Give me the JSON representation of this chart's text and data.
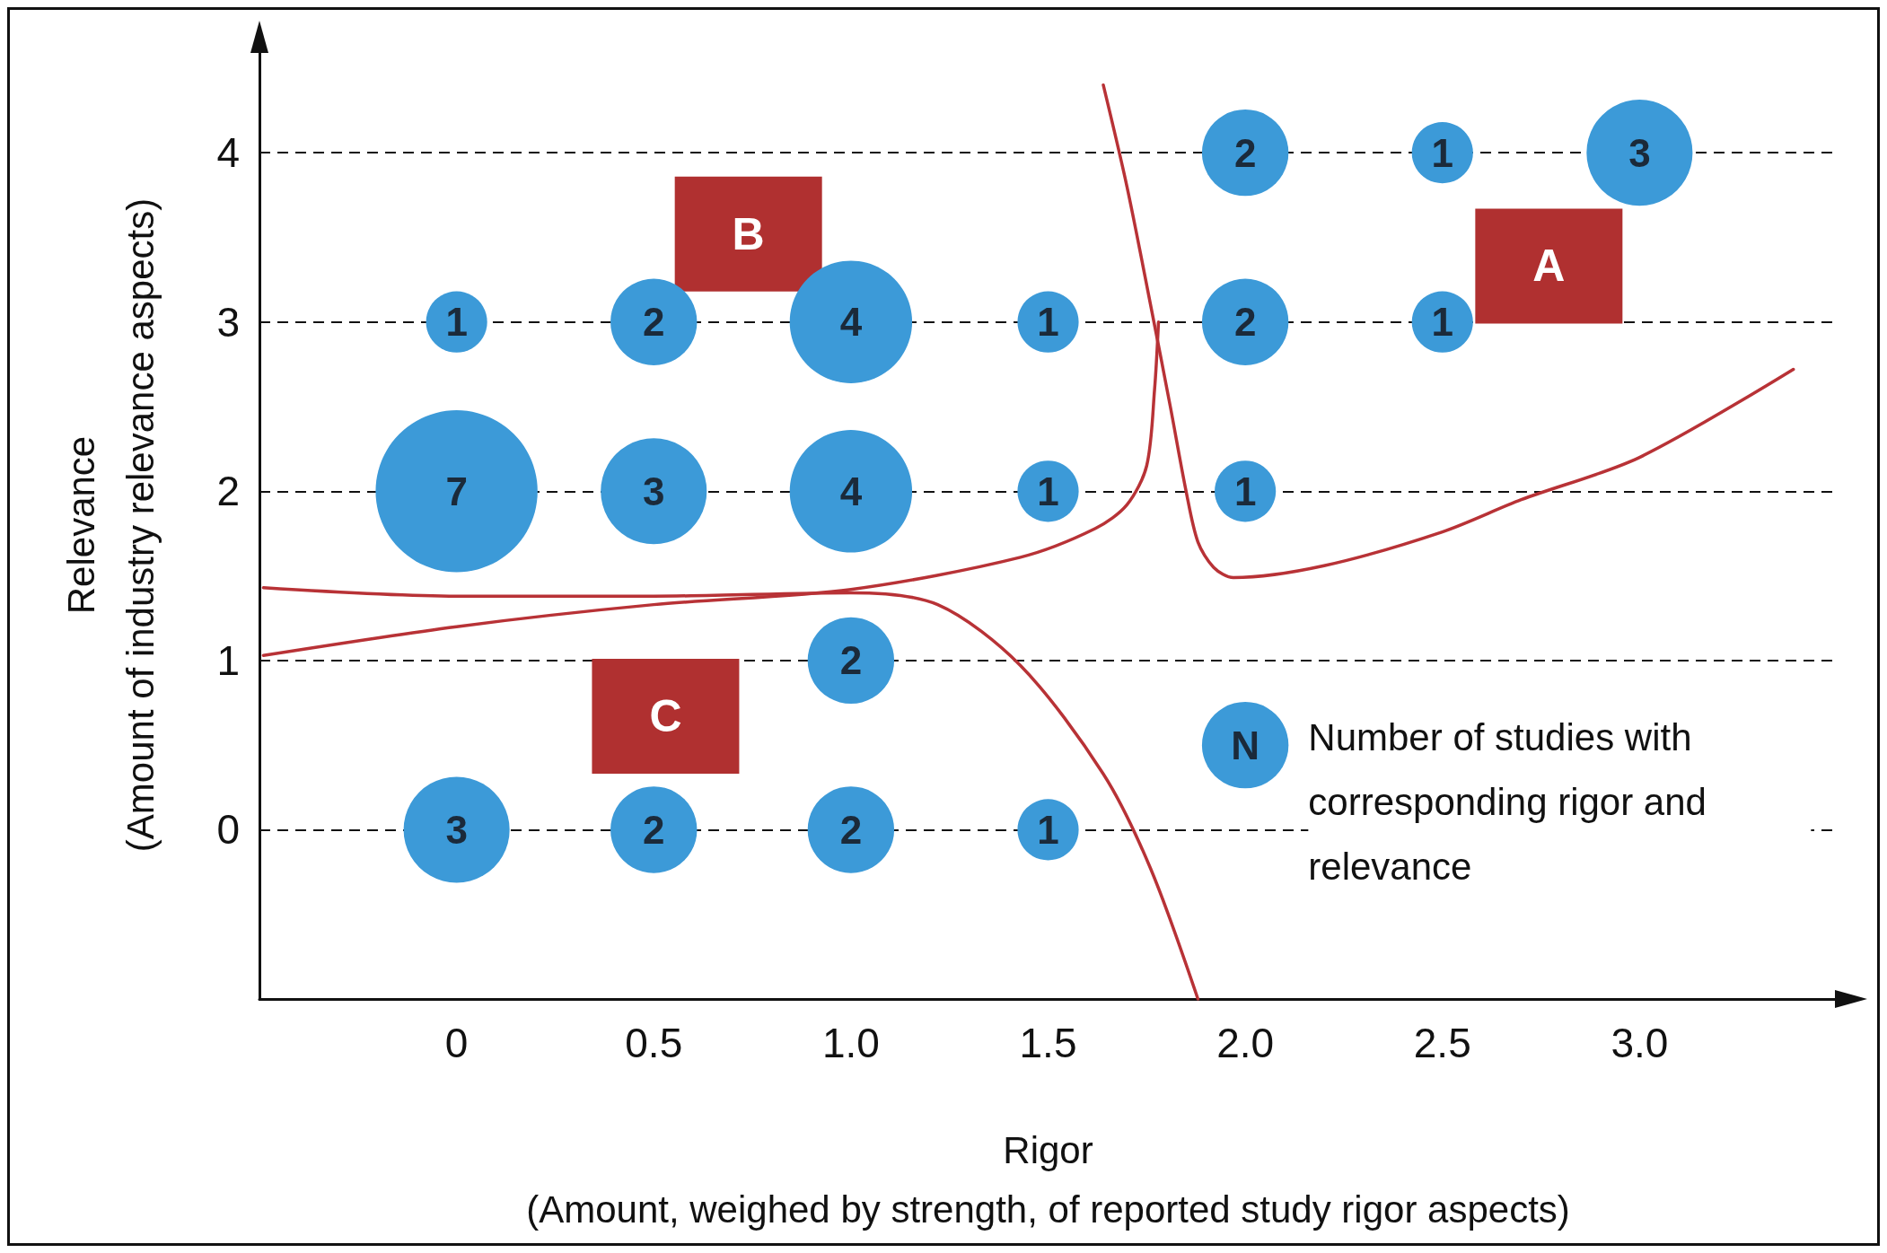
{
  "chart_data": {
    "type": "bubble",
    "xlabel": "Rigor\n(Amount, weighed by strength, of reported study rigor aspects)",
    "ylabel": "Relevance\n(Amount of industry relevance aspects)",
    "xlim": [
      -0.5,
      3.5
    ],
    "ylim": [
      -1,
      4.6
    ],
    "xticks": [
      0,
      0.5,
      {
        "value": 1,
        "label": "1.0"
      },
      1.5,
      {
        "value": 2,
        "label": "2.0"
      },
      2.5,
      {
        "value": 3,
        "label": "3.0"
      }
    ],
    "yticks": [
      0,
      1,
      2,
      3,
      4
    ],
    "grid": "y",
    "annotations": [
      "N",
      "Number of studies with corresponding rigor and relevance",
      "A",
      "B",
      "C"
    ],
    "series": [
      {
        "color": "#3c9ad8",
        "x": [
          2,
          2.5,
          3,
          0,
          0.5,
          1,
          1.5,
          2,
          2.5,
          0,
          0.5,
          1,
          1.5,
          2,
          1,
          0,
          0.5,
          1,
          1.5
        ],
        "values": [
          4,
          4,
          4,
          3,
          3,
          3,
          3,
          3,
          3,
          2,
          2,
          2,
          2,
          2,
          1,
          0,
          0,
          0,
          0
        ],
        "sizes": [
          2,
          1,
          3,
          1,
          2,
          4,
          1,
          2,
          1,
          7,
          3,
          4,
          1,
          1,
          2,
          3,
          2,
          2,
          1
        ],
        "value_labels": [
          "2",
          "1",
          "3",
          "1",
          "2",
          "4",
          "1",
          "2",
          "1",
          "7",
          "3",
          "4",
          "1",
          "1",
          "2",
          "3",
          "2",
          "2",
          "1"
        ]
      },
      {
        "type": "line",
        "color": "#b83236",
        "x": [
          1.64,
          1.7,
          1.76,
          1.81,
          1.85,
          1.88,
          1.92,
          1.97,
          2.2,
          2.5,
          2.7,
          3.0,
          3.39
        ],
        "values": [
          4.4,
          3.8,
          3.1,
          2.5,
          2.0,
          1.7,
          1.55,
          1.49,
          1.56,
          1.76,
          1.95,
          2.2,
          2.72
        ]
      },
      {
        "type": "line",
        "color": "#b83236",
        "x": [
          -0.49,
          0,
          0.5,
          1.0,
          1.43,
          1.62,
          1.7,
          1.75,
          1.77,
          1.78
        ],
        "values": [
          1.03,
          1.2,
          1.33,
          1.42,
          1.61,
          1.78,
          1.92,
          2.15,
          2.6,
          3.0
        ]
      },
      {
        "type": "line",
        "color": "#b83236",
        "x": [
          -0.49,
          0,
          0.5,
          1.0,
          1.22,
          1.43,
          1.64,
          1.76,
          1.88
        ],
        "values": [
          1.43,
          1.38,
          1.38,
          1.4,
          1.33,
          0.97,
          0.33,
          -0.23,
          -1.0
        ]
      }
    ]
  }
}
